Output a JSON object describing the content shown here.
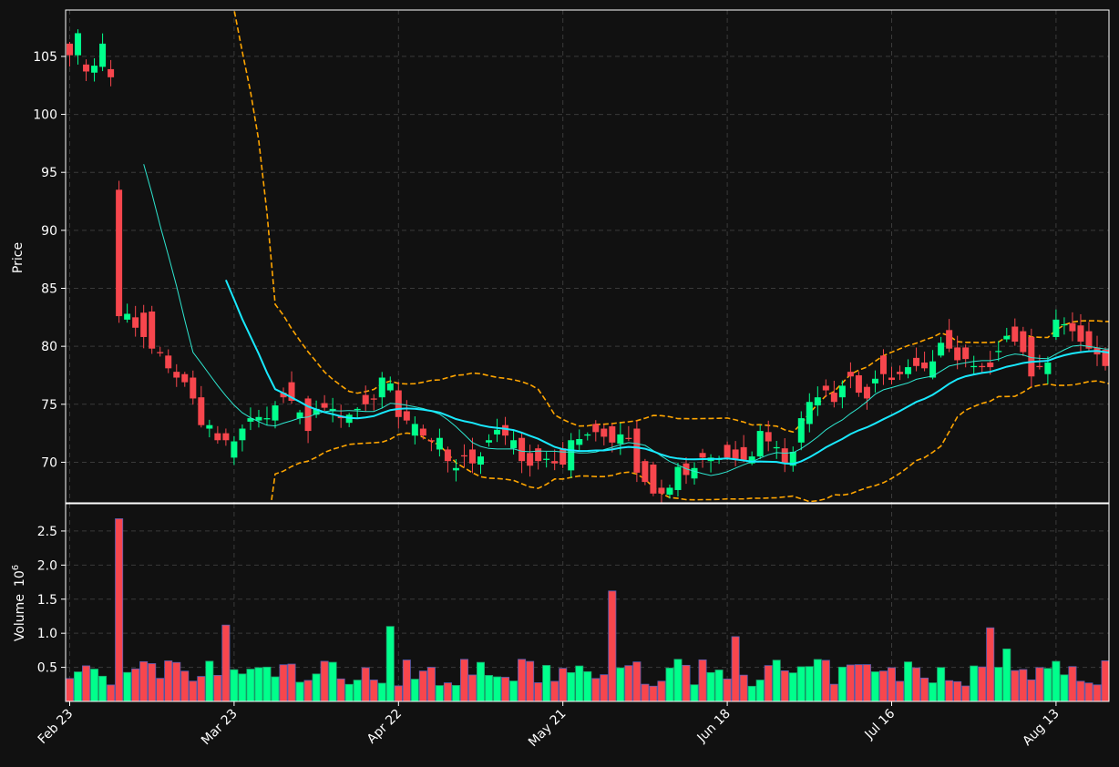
{
  "chart_data": {
    "type": "candlestick",
    "colors": {
      "background": "#111111",
      "up": "#00ff8c",
      "down": "#f7464d",
      "ma_slow": "#19e9ff",
      "ma_fast": "#2ee6d0",
      "bands": "#ffa500",
      "grid": "#3a3a3a",
      "axes": "#ffffff",
      "text": "#ffffff"
    },
    "price_panel": {
      "ylabel": "Price",
      "ylim": [
        66.5,
        109
      ],
      "yticks": [
        "70",
        "75",
        "80",
        "85",
        "90",
        "95",
        "100",
        "105"
      ],
      "grid": true
    },
    "volume_panel": {
      "ylabel": "Volume",
      "ylabel_exponent": "10",
      "ylabel_exponent_power": "6",
      "ylim": [
        0,
        2.9
      ],
      "yticks": [
        "0.5",
        "1.0",
        "1.5",
        "2.0",
        "2.5"
      ],
      "grid": true
    },
    "x_axis": {
      "ticks": [
        {
          "index": 0,
          "label": "Feb 23"
        },
        {
          "index": 20,
          "label": "Mar 23"
        },
        {
          "index": 40,
          "label": "Apr 22"
        },
        {
          "index": 60,
          "label": "May 21"
        },
        {
          "index": 80,
          "label": "Jun 18"
        },
        {
          "index": 100,
          "label": "Jul 16"
        },
        {
          "index": 120,
          "label": "Aug 13"
        }
      ]
    },
    "close": [
      105.1,
      107.0,
      103.7,
      104.2,
      106.1,
      103.2,
      82.6,
      82.8,
      81.6,
      80.8,
      79.8,
      79.4,
      78.1,
      77.3,
      76.9,
      75.5,
      73.2,
      73.2,
      71.9,
      71.9,
      71.8,
      72.9,
      73.8,
      73.9,
      73.8,
      74.9,
      75.6,
      75.3,
      74.3,
      72.7,
      74.6,
      74.7,
      74.6,
      73.8,
      74.1,
      74.6,
      75.0,
      75.4,
      77.3,
      76.8,
      73.9,
      73.6,
      73.3,
      72.3,
      71.8,
      72.1,
      70.1,
      69.5,
      70.5,
      69.9,
      70.5,
      71.9,
      72.8,
      72.3,
      71.9,
      70.1,
      69.7,
      70.1,
      70.3,
      69.9,
      69.8,
      71.9,
      72.0,
      72.4,
      72.6,
      72.2,
      71.7,
      72.4,
      72.0,
      69.1,
      68.3,
      67.3,
      67.3,
      67.8,
      69.6,
      68.9,
      69.5,
      70.4,
      70.4,
      70.3,
      70.4,
      70.3,
      70.2,
      70.5,
      72.7,
      71.8,
      71.3,
      69.9,
      70.9,
      73.8,
      75.2,
      75.6,
      76.2,
      75.2,
      76.6,
      77.4,
      76.0,
      75.5,
      77.2,
      77.6,
      77.1,
      77.6,
      78.2,
      78.3,
      78.1,
      78.7,
      80.3,
      79.8,
      78.8,
      78.9,
      78.3,
      78.2,
      78.2,
      79.6,
      80.9,
      80.4,
      79.5,
      77.4,
      78.2,
      78.6,
      82.3,
      81.9,
      81.3,
      80.4,
      79.8,
      79.3,
      78.3,
      77.7,
      76.1,
      75.4,
      77.2,
      77.5,
      78.7,
      79.5
    ],
    "open": [
      106.1,
      105.1,
      104.3,
      103.6,
      104.1,
      103.9,
      93.5,
      82.3,
      82.5,
      82.9,
      83.0,
      79.5,
      79.2,
      77.8,
      77.6,
      77.3,
      75.6,
      72.9,
      72.5,
      72.5,
      70.4,
      71.9,
      73.5,
      73.6,
      73.7,
      73.6,
      76.0,
      76.9,
      73.8,
      75.5,
      74.1,
      75.1,
      74.4,
      74.0,
      73.4,
      74.5,
      75.8,
      75.5,
      75.6,
      76.2,
      76.2,
      74.4,
      72.3,
      72.9,
      71.9,
      71.1,
      71.1,
      69.3,
      70.6,
      71.1,
      69.8,
      71.7,
      72.4,
      73.2,
      71.2,
      72.1,
      70.8,
      71.2,
      70.2,
      70.1,
      71.2,
      69.3,
      71.5,
      72.3,
      73.3,
      72.9,
      73.1,
      71.6,
      72.1,
      72.9,
      70.1,
      69.8,
      67.8,
      67.2,
      67.6,
      69.9,
      68.6,
      70.8,
      70.1,
      70.2,
      71.5,
      71.1,
      71.3,
      69.9,
      70.5,
      72.6,
      71.2,
      71.2,
      69.7,
      71.7,
      73.3,
      74.9,
      76.6,
      76.0,
      75.6,
      77.8,
      77.5,
      76.5,
      76.8,
      79.2,
      77.3,
      77.8,
      77.6,
      79.0,
      78.6,
      77.3,
      79.2,
      81.4,
      79.9,
      79.9,
      78.2,
      78.3,
      78.6,
      79.5,
      80.6,
      81.7,
      81.3,
      80.8,
      78.3,
      77.6,
      80.8,
      81.9,
      82.0,
      81.8,
      81.3,
      79.9,
      79.7,
      79.0,
      77.7,
      77.7,
      76.0,
      76.9,
      77.5,
      78.8
    ]
  }
}
